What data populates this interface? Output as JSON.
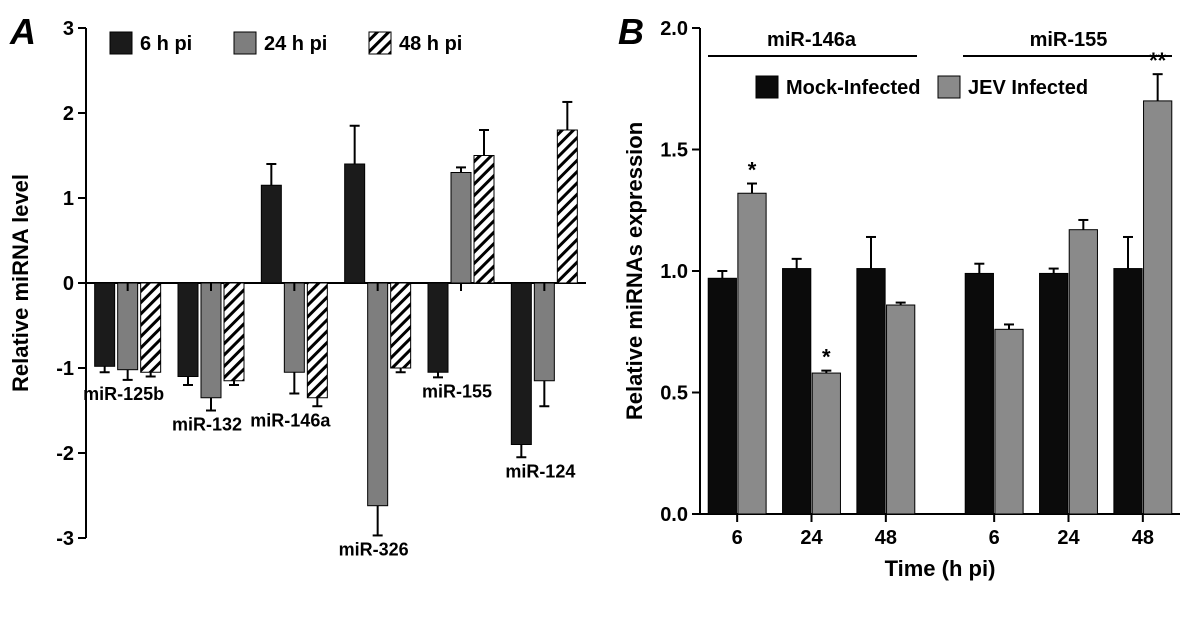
{
  "panelA": {
    "label": "A",
    "type": "bar",
    "y_title": "Relative miRNA level",
    "ylim": [
      -3,
      3
    ],
    "ytick_step": 1,
    "background_color": "#ffffff",
    "axis_color": "#000000",
    "colors": {
      "t6": "#1b1b1b",
      "t24": "#7e7e7e",
      "t48_pattern_fg": "#000000",
      "t48_pattern_bg": "#ffffff"
    },
    "legend": [
      {
        "key": "t6",
        "label": "6 h pi"
      },
      {
        "key": "t24",
        "label": "24 h pi"
      },
      {
        "key": "t48",
        "label": "48 h pi"
      }
    ],
    "bar_width": 0.8,
    "groups": [
      {
        "name": "miR-125b",
        "bars": [
          {
            "series": "t6",
            "value": -0.98,
            "err": 0.07
          },
          {
            "series": "t24",
            "value": -1.02,
            "err": 0.12
          },
          {
            "series": "t48",
            "value": -1.05,
            "err": 0.05
          }
        ]
      },
      {
        "name": "miR-132",
        "bars": [
          {
            "series": "t6",
            "value": -1.1,
            "err": 0.1
          },
          {
            "series": "t24",
            "value": -1.35,
            "err": 0.15
          },
          {
            "series": "t48",
            "value": -1.15,
            "err": 0.05
          }
        ]
      },
      {
        "name": "miR-146a",
        "bars": [
          {
            "series": "t6",
            "value": 1.15,
            "err": 0.25
          },
          {
            "series": "t24",
            "value": -1.05,
            "err": 0.25
          },
          {
            "series": "t48",
            "value": -1.35,
            "err": 0.1
          }
        ]
      },
      {
        "name": "miR-326",
        "bars": [
          {
            "series": "t6",
            "value": 1.4,
            "err": 0.45
          },
          {
            "series": "t24",
            "value": -2.62,
            "err": 0.35
          },
          {
            "series": "t48",
            "value": -1.0,
            "err": 0.05
          }
        ]
      },
      {
        "name": "miR-155",
        "bars": [
          {
            "series": "t6",
            "value": -1.05,
            "err": 0.06
          },
          {
            "series": "t24",
            "value": 1.3,
            "err": 0.06
          },
          {
            "series": "t48",
            "value": 1.5,
            "err": 0.3
          }
        ]
      },
      {
        "name": "miR-124",
        "bars": [
          {
            "series": "t6",
            "value": -1.9,
            "err": 0.15
          },
          {
            "series": "t24",
            "value": -1.15,
            "err": 0.3
          },
          {
            "series": "t48",
            "value": 1.8,
            "err": 0.33
          }
        ]
      }
    ]
  },
  "panelB": {
    "label": "B",
    "type": "bar",
    "y_title": "Relative miRNAs expression",
    "x_title": "Time (h pi)",
    "ylim": [
      0,
      2.0
    ],
    "ytick_step": 0.5,
    "background_color": "#ffffff",
    "axis_color": "#000000",
    "colors": {
      "mock": "#0b0b0b",
      "jev": "#8a8a8a"
    },
    "legend": [
      {
        "key": "mock",
        "label": "Mock-Infected"
      },
      {
        "key": "jev",
        "label": "JEV Infected"
      }
    ],
    "header_labels": [
      "miR-146a",
      "miR-155"
    ],
    "bar_width": 0.9,
    "sections": [
      {
        "header": "miR-146a",
        "groups": [
          {
            "time": "6",
            "bars": [
              {
                "series": "mock",
                "value": 0.97,
                "err": 0.03
              },
              {
                "series": "jev",
                "value": 1.32,
                "err": 0.04,
                "sig": "*"
              }
            ]
          },
          {
            "time": "24",
            "bars": [
              {
                "series": "mock",
                "value": 1.01,
                "err": 0.04
              },
              {
                "series": "jev",
                "value": 0.58,
                "err": 0.01,
                "sig": "*"
              }
            ]
          },
          {
            "time": "48",
            "bars": [
              {
                "series": "mock",
                "value": 1.01,
                "err": 0.13
              },
              {
                "series": "jev",
                "value": 0.86,
                "err": 0.01
              }
            ]
          }
        ]
      },
      {
        "header": "miR-155",
        "groups": [
          {
            "time": "6",
            "bars": [
              {
                "series": "mock",
                "value": 0.99,
                "err": 0.04
              },
              {
                "series": "jev",
                "value": 0.76,
                "err": 0.02
              }
            ]
          },
          {
            "time": "24",
            "bars": [
              {
                "series": "mock",
                "value": 0.99,
                "err": 0.02
              },
              {
                "series": "jev",
                "value": 1.17,
                "err": 0.04
              }
            ]
          },
          {
            "time": "48",
            "bars": [
              {
                "series": "mock",
                "value": 1.01,
                "err": 0.13
              },
              {
                "series": "jev",
                "value": 1.7,
                "err": 0.11,
                "sig": "**"
              }
            ]
          }
        ]
      }
    ]
  }
}
